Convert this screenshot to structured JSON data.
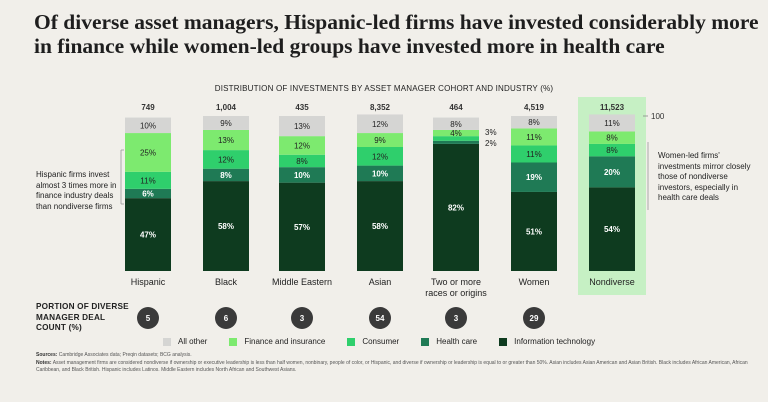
{
  "title": "Of diverse asset managers, Hispanic-led firms have invested considerably more in finance while women-led groups have invested more in health care",
  "chart_data": {
    "type": "bar",
    "subtype": "stacked-100",
    "subtitle": "DISTRIBUTION OF INVESTMENTS BY ASSET MANAGER COHORT AND INDUSTRY (%)",
    "categories": [
      "Hispanic",
      "Black",
      "Middle Eastern",
      "Asian",
      "Two or more races or origins",
      "Women",
      "Nondiverse"
    ],
    "totals": [
      "749",
      "1,004",
      "435",
      "8,352",
      "464",
      "4,519",
      "11,523"
    ],
    "series": [
      {
        "name": "Information technology",
        "color": "#0e3b1f",
        "values": [
          47,
          58,
          57,
          58,
          82,
          51,
          54
        ]
      },
      {
        "name": "Health care",
        "color": "#1f7a55",
        "values": [
          6,
          8,
          10,
          10,
          2,
          19,
          20
        ]
      },
      {
        "name": "Consumer",
        "color": "#2fcf6c",
        "values": [
          11,
          12,
          8,
          12,
          3,
          11,
          8
        ]
      },
      {
        "name": "Finance and insurance",
        "color": "#7dea6f",
        "values": [
          25,
          13,
          12,
          9,
          4,
          11,
          8
        ]
      },
      {
        "name": "All other",
        "color": "#d5d5d3",
        "values": [
          10,
          9,
          13,
          12,
          8,
          8,
          11
        ]
      }
    ],
    "scale_label": "100",
    "highlight_category": "Nondiverse",
    "portion_of_deal_count": [
      "5",
      "6",
      "3",
      "54",
      "3",
      "29"
    ],
    "ylim": [
      0,
      100
    ]
  },
  "annotations": {
    "left": "Hispanic firms invest almost 3 times more in finance industry deals than nondiverse firms",
    "right": "Women-led firms' investments mirror closely those of nondiverse investors, especially in health care deals"
  },
  "portion_label": "PORTION OF DIVERSE MANAGER DEAL COUNT (%)",
  "legend": [
    "All other",
    "Finance and insurance",
    "Consumer",
    "Health care",
    "Information technology"
  ],
  "legend_colors": [
    "#d5d5d3",
    "#7dea6f",
    "#2fcf6c",
    "#1f7a55",
    "#0e3b1f"
  ],
  "footnotes": {
    "sources_label": "Sources:",
    "sources": "Cambridge Associates data; Preqin datasets; BCG analysis.",
    "notes_label": "Notes:",
    "notes": "Asset management firms are considered nondiverse if ownership or executive leadership is less than half women, nonbinary, people of color, or Hispanic, and diverse if ownership or leadership is equal to or greater than 50%. Asian includes Asian American and Asian British. Black includes African American, African Caribbean, and Black British. Hispanic includes Latinos. Middle Eastern includes North African and Southwest Asians."
  }
}
